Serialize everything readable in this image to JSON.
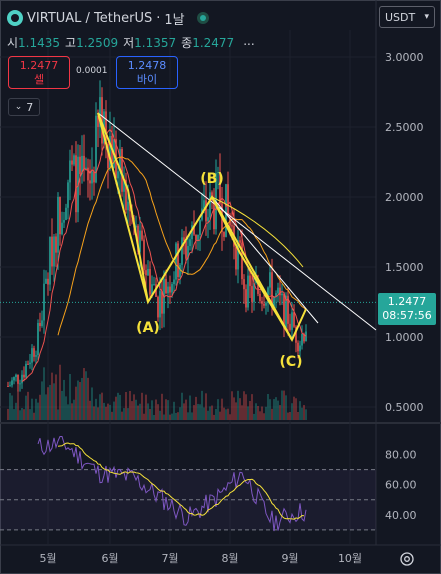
{
  "header": {
    "symbol": "VIRTUAL / TetherUS",
    "interval": "1날",
    "currency_button": "USDT",
    "currency_icon": "chevron-down-icon"
  },
  "ohlc": {
    "open_label": "시",
    "open": "1.1435",
    "high_label": "고",
    "high": "1.2509",
    "low_label": "저",
    "low": "1.1357",
    "close_label": "종",
    "close": "1.2477",
    "more": "..."
  },
  "trade": {
    "sell_price": "1.2477",
    "sell_label": "셀",
    "spread": "0.0001",
    "buy_price": "1.2478",
    "buy_label": "바이"
  },
  "indicators_button": "7",
  "price_tag": {
    "price": "1.2477",
    "countdown": "08:57:56"
  },
  "colors": {
    "up": "#26a69a",
    "down": "#ef5350",
    "ma_short": "#ef5350",
    "ma_long": "#f7a21b",
    "wave": "#f5e13a",
    "rsi": "#7e57c2",
    "rsi_ma": "#f5e13a"
  },
  "chart_data": {
    "type": "candlestick",
    "x_ticks": [
      "5월",
      "6월",
      "7월",
      "8월",
      "9월",
      "10월"
    ],
    "y_ticks": [
      "3.0000",
      "2.5000",
      "2.0000",
      "1.5000",
      "1.0000",
      "0.5000"
    ],
    "ylim": [
      0.45,
      3.1
    ],
    "last_price": 1.2477,
    "elliott_labels": [
      "(A)",
      "(B)",
      "(C)"
    ],
    "elliott_points": [
      {
        "label": "top",
        "value": 2.6
      },
      {
        "label": "(A)",
        "value": 1.25
      },
      {
        "label": "(B)",
        "value": 2.0
      },
      {
        "label": "(C)",
        "value": 0.98
      }
    ],
    "rsi": {
      "y_ticks": [
        "80.00",
        "60.00",
        "40.00"
      ],
      "levels": [
        70,
        50,
        30
      ],
      "ylim": [
        20,
        95
      ]
    }
  }
}
